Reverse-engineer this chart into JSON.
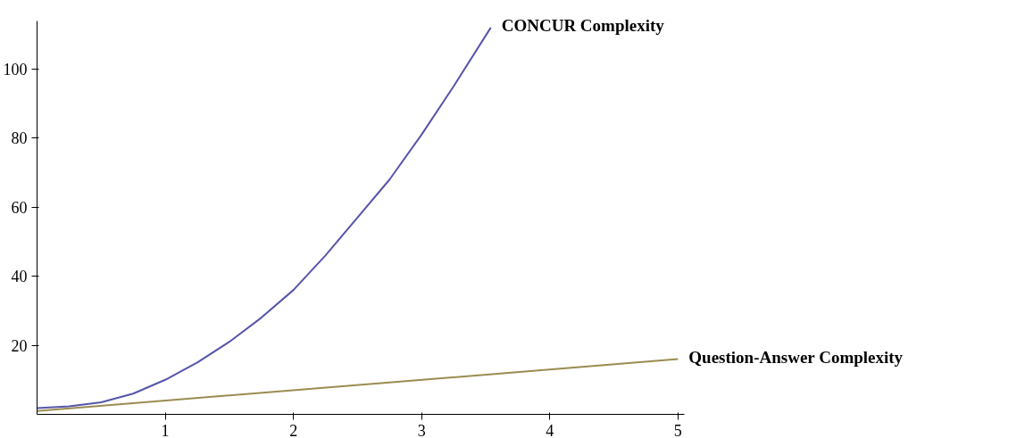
{
  "chart_data": {
    "type": "line",
    "xlim": [
      0,
      5.05
    ],
    "ylim": [
      0,
      114
    ],
    "xticks": [
      1,
      2,
      3,
      4,
      5
    ],
    "yticks": [
      20,
      40,
      60,
      80,
      100
    ],
    "grid": false,
    "legend": false,
    "marker": "none",
    "line_style": "solid",
    "series": [
      {
        "name": "CONCUR Complexity",
        "color": "#5555aa",
        "x": [
          0,
          0.25,
          0.5,
          0.75,
          1,
          1.25,
          1.5,
          1.75,
          2,
          2.25,
          2.5,
          2.75,
          3,
          3.25,
          3.54
        ],
        "values": [
          1.8,
          2.3,
          3.5,
          6,
          10,
          15,
          21,
          28,
          36,
          46,
          57,
          68,
          81,
          95,
          112
        ]
      },
      {
        "name": "Question-Answer Complexity",
        "color": "#9a8c50",
        "x": [
          0,
          5
        ],
        "values": [
          1,
          16
        ]
      }
    ]
  }
}
